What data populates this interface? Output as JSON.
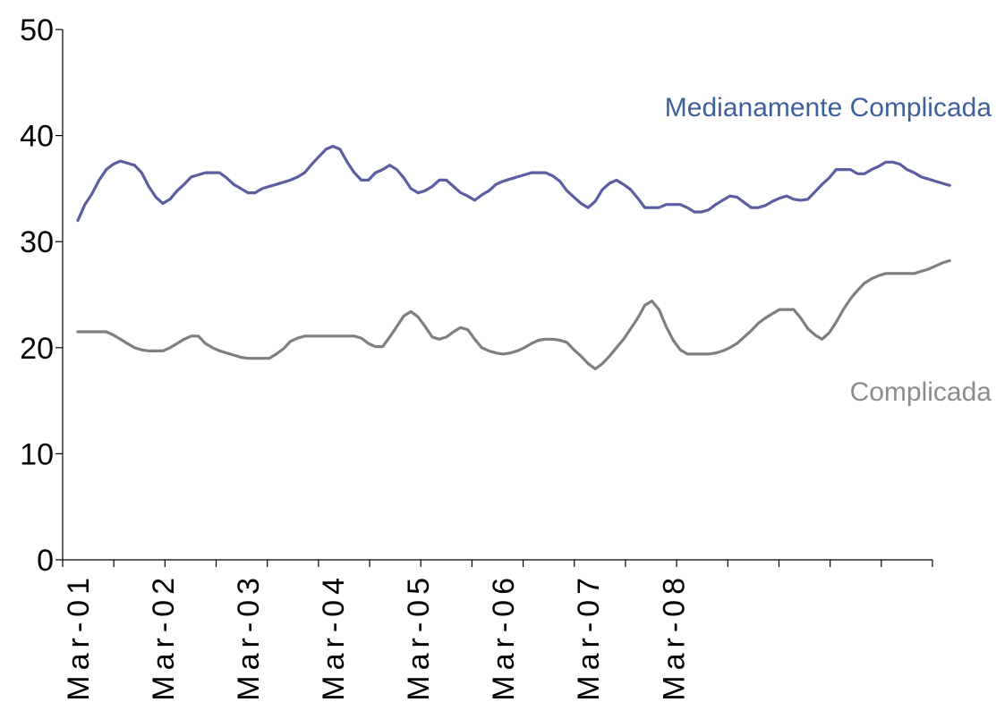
{
  "chart_data": {
    "type": "line",
    "title": "",
    "xlabel": "",
    "ylabel": "",
    "ylim": [
      0,
      50
    ],
    "yticks": [
      0,
      10,
      20,
      30,
      40,
      50
    ],
    "x_tick_labels": [
      "Mar-01",
      "Mar-02",
      "Mar-03",
      "Mar-04",
      "Mar-05",
      "Mar-06",
      "Mar-07",
      "Mar-08"
    ],
    "x_tick_positions": [
      1,
      13,
      25,
      37,
      49,
      61,
      73,
      85
    ],
    "x_minor_tick_count": 17,
    "x_start": "Mar-01",
    "x_end": "Jan-09",
    "grid": false,
    "legend": "inline labels at right",
    "series": [
      {
        "name": "Medianamente Complicada",
        "color": "#5b5ea0",
        "label_color": "#3d5f9a",
        "values": [
          32.0,
          33.5,
          34.5,
          35.8,
          36.8,
          37.3,
          37.6,
          37.4,
          37.2,
          36.5,
          35.2,
          34.2,
          33.6,
          34.0,
          34.8,
          35.4,
          36.1,
          36.3,
          36.5,
          36.5,
          36.5,
          36.0,
          35.4,
          35.0,
          34.6,
          34.6,
          35.0,
          35.2,
          35.4,
          35.6,
          35.8,
          36.1,
          36.5,
          37.3,
          38.0,
          38.7,
          39.0,
          38.7,
          37.5,
          36.5,
          35.8,
          35.8,
          36.5,
          36.8,
          37.2,
          36.8,
          36.0,
          35.0,
          34.6,
          34.8,
          35.2,
          35.8,
          35.8,
          35.2,
          34.6,
          34.3,
          33.9,
          34.4,
          34.8,
          35.4,
          35.7,
          35.9,
          36.1,
          36.3,
          36.5,
          36.5,
          36.5,
          36.2,
          35.7,
          34.8,
          34.2,
          33.6,
          33.2,
          33.8,
          34.9,
          35.5,
          35.8,
          35.4,
          34.9,
          34.1,
          33.2,
          33.2,
          33.2,
          33.5,
          33.5,
          33.5,
          33.2,
          32.8,
          32.8,
          33.0,
          33.5,
          33.9,
          34.3,
          34.2,
          33.7,
          33.2,
          33.2,
          33.4,
          33.8,
          34.1,
          34.3,
          34.0,
          33.9,
          34.0,
          34.7,
          35.4,
          36.0,
          36.8,
          36.8,
          36.8,
          36.4,
          36.4,
          36.8,
          37.1,
          37.5,
          37.5,
          37.3,
          36.8,
          36.5,
          36.1,
          35.9,
          35.7,
          35.5,
          35.3
        ]
      },
      {
        "name": "Complicada",
        "color": "#7f7f7f",
        "label_color": "#8c8c8c",
        "values": [
          21.5,
          21.5,
          21.5,
          21.5,
          21.5,
          21.2,
          20.8,
          20.4,
          20.0,
          19.8,
          19.7,
          19.7,
          19.7,
          20.0,
          20.4,
          20.8,
          21.1,
          21.1,
          20.4,
          20.0,
          19.7,
          19.5,
          19.3,
          19.1,
          19.0,
          19.0,
          19.0,
          19.0,
          19.4,
          19.9,
          20.6,
          20.9,
          21.1,
          21.1,
          21.1,
          21.1,
          21.1,
          21.1,
          21.1,
          21.1,
          20.9,
          20.4,
          20.1,
          20.1,
          21.0,
          22.0,
          23.0,
          23.4,
          22.9,
          22.0,
          21.0,
          20.8,
          21.0,
          21.5,
          21.9,
          21.7,
          20.8,
          20.0,
          19.7,
          19.5,
          19.4,
          19.5,
          19.7,
          20.0,
          20.4,
          20.7,
          20.8,
          20.8,
          20.7,
          20.5,
          19.8,
          19.2,
          18.5,
          18.0,
          18.5,
          19.2,
          20.0,
          20.8,
          21.8,
          22.8,
          24.0,
          24.4,
          23.6,
          22.0,
          20.7,
          19.8,
          19.4,
          19.4,
          19.4,
          19.4,
          19.5,
          19.7,
          20.0,
          20.4,
          21.0,
          21.6,
          22.3,
          22.8,
          23.2,
          23.6,
          23.6,
          23.6,
          22.8,
          21.8,
          21.2,
          20.8,
          21.4,
          22.4,
          23.6,
          24.6,
          25.4,
          26.1,
          26.5,
          26.8,
          27.0,
          27.0,
          27.0,
          27.0,
          27.0,
          27.2,
          27.4,
          27.7,
          28.0,
          28.2
        ]
      }
    ]
  }
}
